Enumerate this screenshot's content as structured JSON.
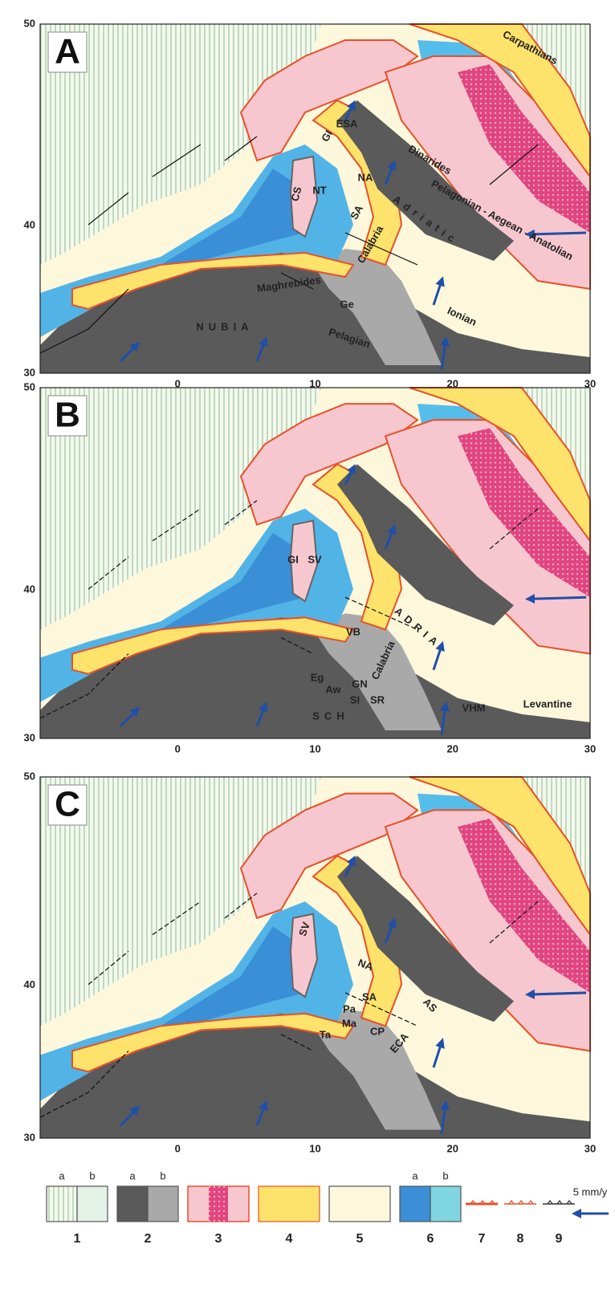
{
  "panels": [
    {
      "label": "A",
      "lat_ticks": [
        50,
        40,
        30
      ],
      "lon_ticks": [
        0,
        10,
        20,
        30
      ],
      "places": [
        "Carpathians",
        "ESA",
        "GI",
        "Dinarides",
        "NA",
        "NT",
        "CS",
        "SA",
        "Adriatic",
        "Pelagonian - Aegean - Anatolian",
        "Calabria",
        "Maghrebides",
        "Ge",
        "NUBIA",
        "Pelagian",
        "Ionian"
      ]
    },
    {
      "label": "B",
      "lat_ticks": [
        50,
        40,
        30
      ],
      "lon_ticks": [
        0,
        10,
        20,
        30
      ],
      "places": [
        "GI",
        "SV",
        "ADRIA",
        "VB",
        "Calabria",
        "Eg",
        "GN",
        "Aw",
        "SI",
        "SR",
        "SCH",
        "VHM",
        "Levantine"
      ]
    },
    {
      "label": "C",
      "lat_ticks": [
        50,
        40,
        30
      ],
      "lon_ticks": [
        0,
        10,
        20,
        30
      ],
      "places": [
        "SV",
        "NA",
        "SA",
        "AS",
        "Pa",
        "Ma",
        "Ta",
        "CP",
        "ECA"
      ]
    }
  ],
  "legend": {
    "items": [
      {
        "number": 1,
        "parts": [
          "a",
          "b"
        ]
      },
      {
        "number": 2,
        "parts": [
          "a",
          "b"
        ]
      },
      {
        "number": 3
      },
      {
        "number": 4
      },
      {
        "number": 5
      },
      {
        "number": 6,
        "parts": [
          "a",
          "b"
        ]
      },
      {
        "number": 7
      },
      {
        "number": 8
      },
      {
        "number": 9
      }
    ],
    "speed": "5 mm/y"
  }
}
